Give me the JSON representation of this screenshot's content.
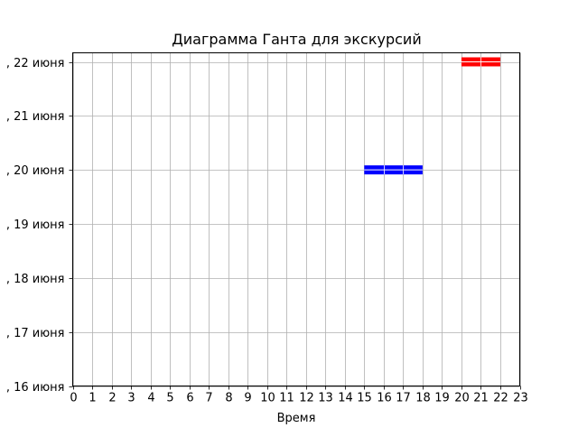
{
  "chart_data": {
    "type": "gantt",
    "title": "Диаграмма Ганта для экскурсий",
    "xlabel": "Время",
    "ylabel": "",
    "xlim": [
      0,
      23
    ],
    "x_ticks": [
      0,
      1,
      2,
      3,
      4,
      5,
      6,
      7,
      8,
      9,
      10,
      11,
      12,
      13,
      14,
      15,
      16,
      17,
      18,
      19,
      20,
      21,
      22,
      23
    ],
    "y_categories": [
      ", 16 июня",
      ", 17 июня",
      ", 18 июня",
      ", 19 июня",
      ", 20 июня",
      ", 21 июня",
      ", 22 июня"
    ],
    "grid": true,
    "tasks": [
      {
        "category": ", 20 июня",
        "start": 15,
        "end": 18,
        "color": "#0000ff"
      },
      {
        "category": ", 22 июня",
        "start": 20,
        "end": 22,
        "color": "#ff0000"
      }
    ]
  }
}
